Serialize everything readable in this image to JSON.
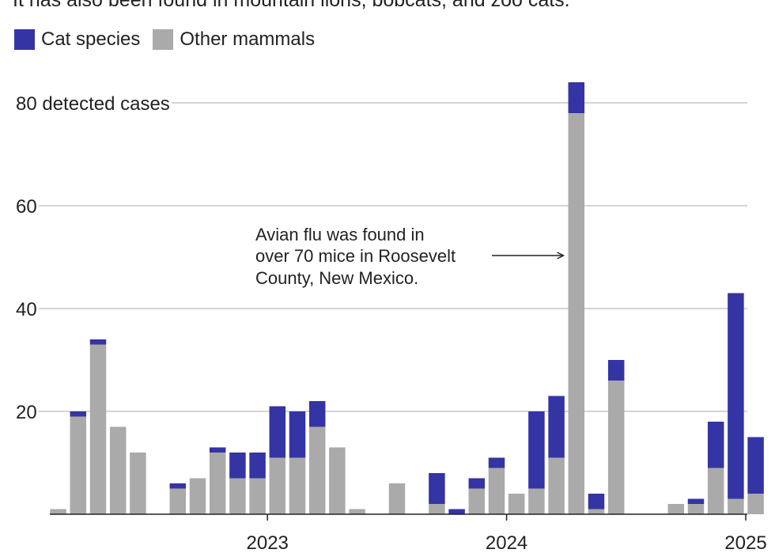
{
  "subtitle": "It has also been found in mountain lions, bobcats, and zoo cats.",
  "legend": [
    {
      "label": "Cat species",
      "color": "#3434a4"
    },
    {
      "label": "Other mammals",
      "color": "#aaaaaa"
    }
  ],
  "colors": {
    "cat": "#3434a4",
    "other": "#aaaaaa",
    "grid": "#bbbbbb",
    "axis": "#222222"
  },
  "chart_data": {
    "type": "bar",
    "stacked": true,
    "ylim": [
      0,
      84
    ],
    "yticks": [
      {
        "value": 20,
        "label": "20"
      },
      {
        "value": 40,
        "label": "40"
      },
      {
        "value": 60,
        "label": "60"
      },
      {
        "value": 80,
        "label": "80 detected cases"
      }
    ],
    "xticks": [
      {
        "index": 10.5,
        "label": "2023"
      },
      {
        "index": 22.5,
        "label": "2024"
      },
      {
        "index": 34.5,
        "label": "2025"
      }
    ],
    "series": [
      {
        "name": "Other mammals",
        "color": "#aaaaaa",
        "values": [
          1,
          19,
          33,
          17,
          12,
          0,
          5,
          7,
          12,
          7,
          7,
          11,
          11,
          17,
          13,
          1,
          0,
          6,
          0,
          2,
          0,
          5,
          9,
          4,
          5,
          11,
          78,
          1,
          26,
          0,
          0,
          2,
          2,
          9,
          3,
          4
        ]
      },
      {
        "name": "Cat species",
        "color": "#3434a4",
        "values": [
          0,
          1,
          1,
          0,
          0,
          0,
          1,
          0,
          1,
          5,
          5,
          10,
          9,
          5,
          0,
          0,
          0,
          0,
          0,
          6,
          1,
          2,
          2,
          0,
          15,
          12,
          6,
          3,
          4,
          0,
          0,
          0,
          1,
          9,
          40,
          11
        ]
      }
    ],
    "annotations": [
      {
        "lines": [
          "Avian flu was found in",
          "over 70 mice in Roosevelt",
          "County, New Mexico."
        ],
        "points_to_index": 26
      }
    ]
  }
}
